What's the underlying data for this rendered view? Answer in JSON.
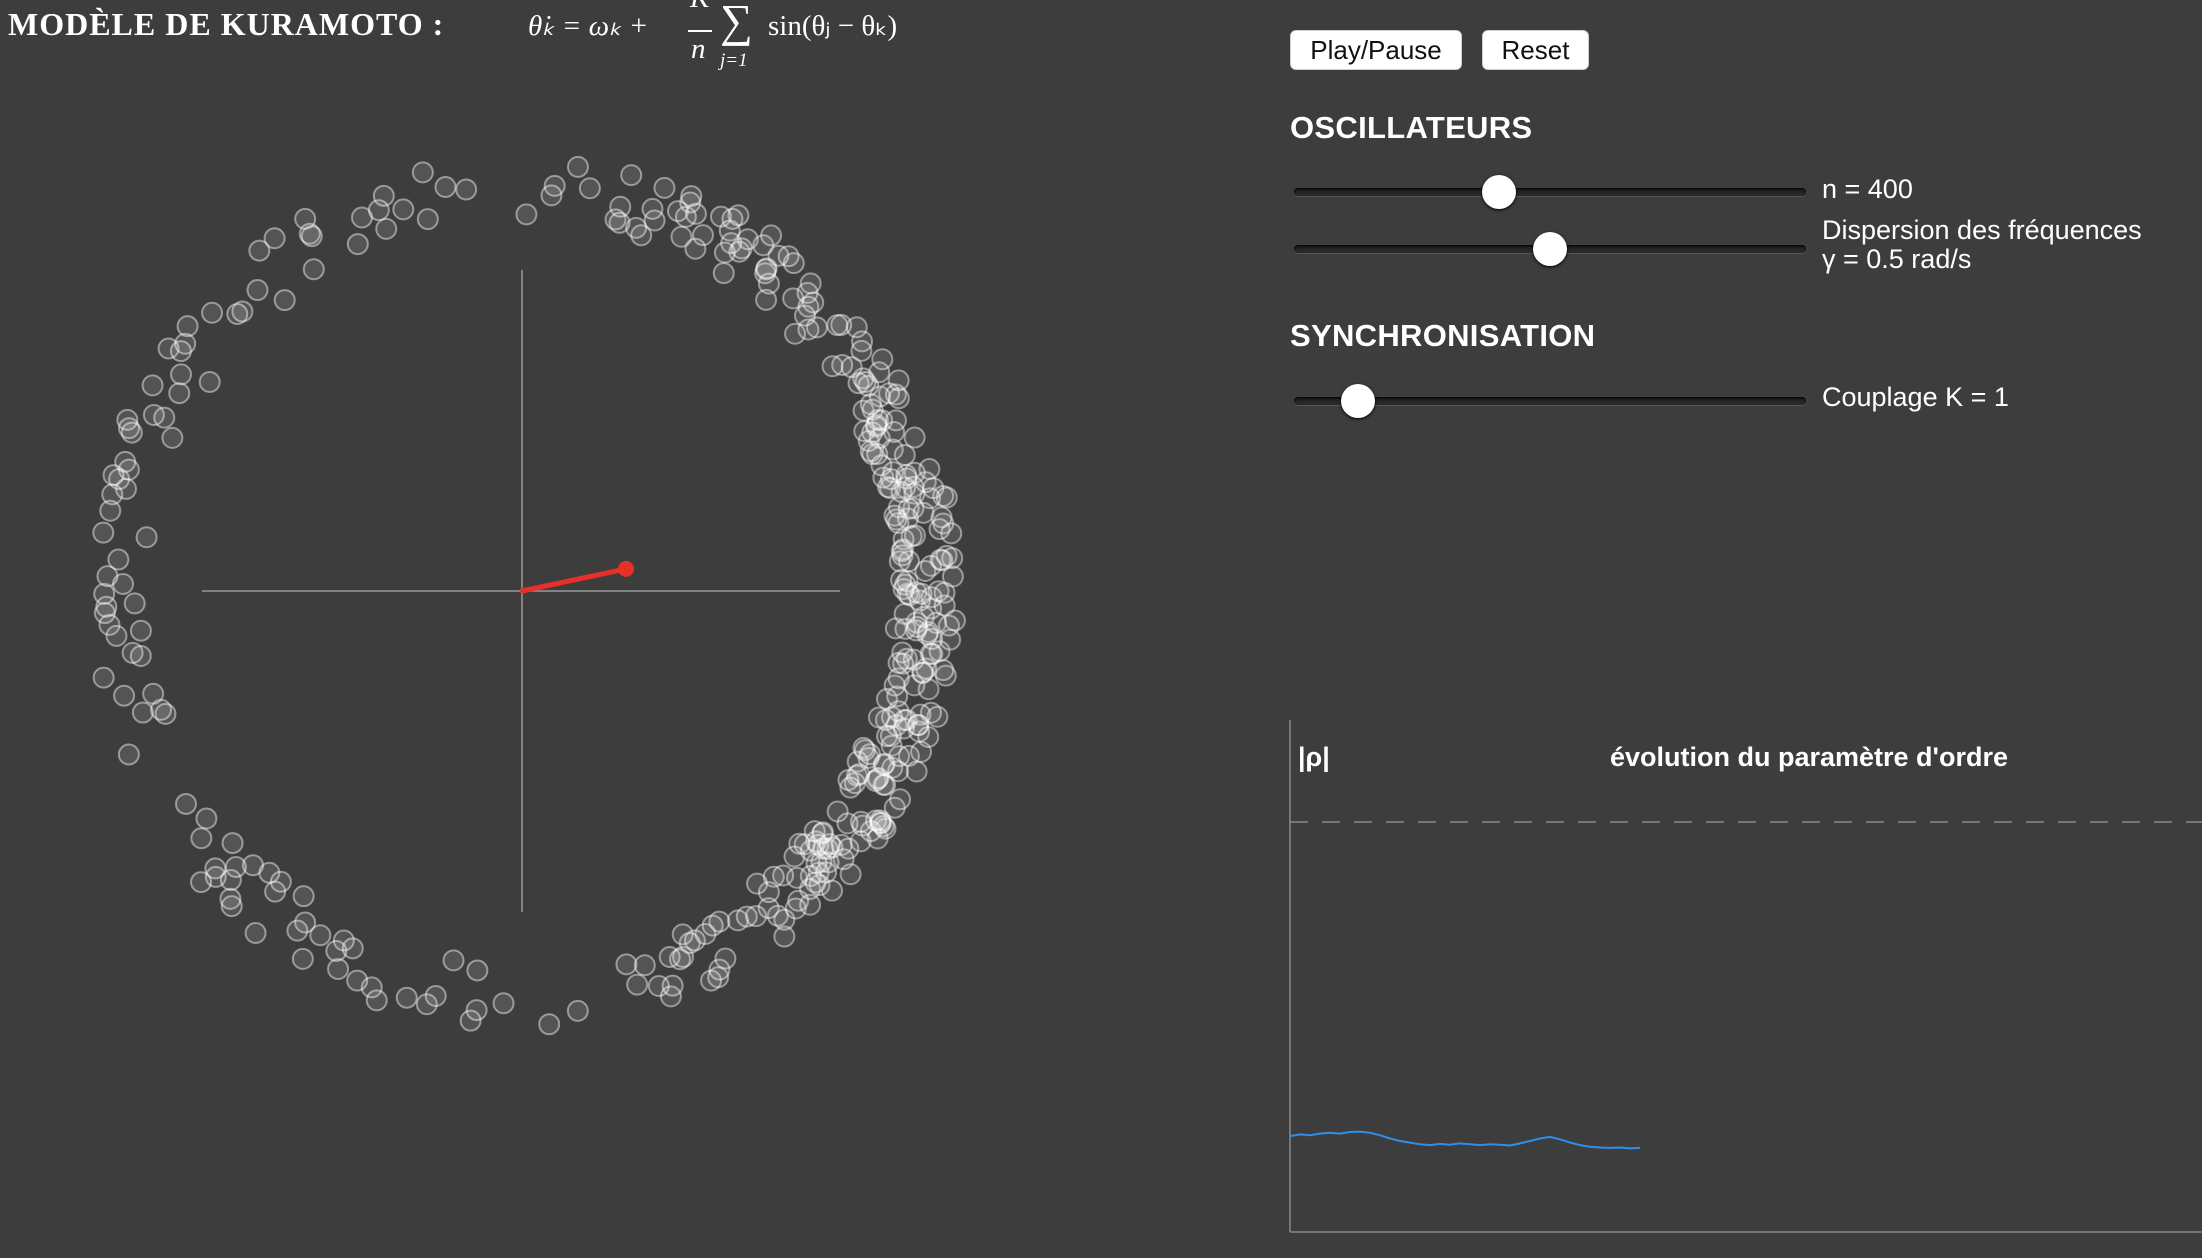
{
  "title": {
    "label": "MODÈLE DE KURAMOTO :",
    "equation": {
      "lhs": "θ̇ₖ = ωₖ +",
      "frac_num": "K",
      "frac_den": "n",
      "sum": "∑",
      "sum_sub": "j=1",
      "rhs": "sin(θⱼ − θₖ)"
    }
  },
  "controls": {
    "play_pause": "Play/Pause",
    "reset": "Reset",
    "oscillateurs": {
      "heading": "OSCILLATEURS",
      "n_label": "n = 400",
      "n_fraction": 0.4,
      "gamma_label_1": "Dispersion des fréquences",
      "gamma_label_2": "γ = 0.5 rad/s",
      "gamma_fraction": 0.5
    },
    "synchronisation": {
      "heading": "SYNCHRONISATION",
      "k_label": "Couplage K = 1",
      "k_fraction": 0.125
    }
  },
  "phase_plot": {
    "n": 400,
    "order_parameter_magnitude": 0.21,
    "order_parameter_phase_deg": 12,
    "order_color": "#e8302a",
    "dot_color": "#ffffff"
  },
  "chart_data": {
    "type": "line",
    "title": "évolution du paramètre d'ordre",
    "ylabel": "|ρ|",
    "ylim": [
      0,
      1
    ],
    "reference_line": 1,
    "color": "#2f8fe8",
    "x": [
      0,
      1,
      2,
      3,
      4,
      5,
      6,
      7,
      8,
      9,
      10,
      11,
      12,
      13,
      14,
      15,
      16,
      17,
      18,
      19,
      20,
      21,
      22,
      23,
      24,
      25,
      26,
      27,
      28,
      29,
      30,
      31,
      32,
      33,
      34,
      35
    ],
    "values": [
      0.234,
      0.238,
      0.236,
      0.24,
      0.242,
      0.24,
      0.244,
      0.245,
      0.242,
      0.236,
      0.228,
      0.222,
      0.218,
      0.214,
      0.212,
      0.215,
      0.213,
      0.216,
      0.214,
      0.212,
      0.214,
      0.213,
      0.211,
      0.216,
      0.222,
      0.228,
      0.232,
      0.226,
      0.218,
      0.212,
      0.208,
      0.206,
      0.205,
      0.206,
      0.204,
      0.205
    ]
  }
}
